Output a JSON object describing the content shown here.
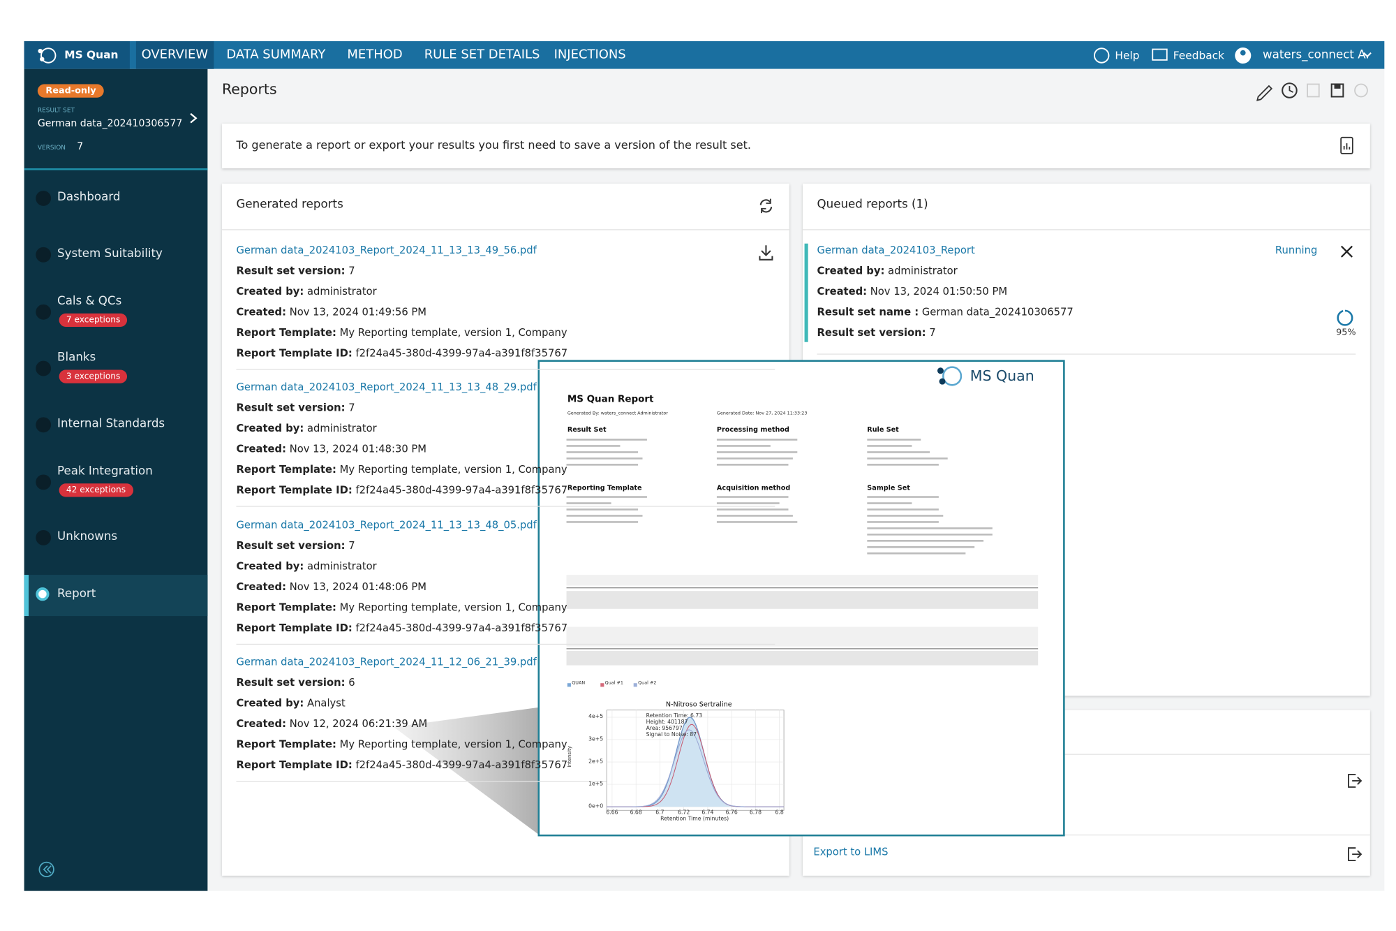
{
  "nav": {
    "product": "MS Quan",
    "tabs": [
      "OVERVIEW",
      "DATA SUMMARY",
      "METHOD",
      "RULE SET DETAILS",
      "INJECTIONS"
    ],
    "help": "Help",
    "feedback": "Feedback",
    "user": "waters_connect A."
  },
  "sidebar": {
    "badge": "Read-only",
    "result_set_label": "RESULT SET",
    "result_set": "German data_202410306577",
    "version_label": "VERSION",
    "version": 7,
    "items": [
      {
        "label": "Dashboard"
      },
      {
        "label": "System Suitability"
      },
      {
        "label": "Cals & QCs",
        "exceptions": "7 exceptions"
      },
      {
        "label": "Blanks",
        "exceptions": "3 exceptions"
      },
      {
        "label": "Internal Standards"
      },
      {
        "label": "Peak Integration",
        "exceptions": "42 exceptions"
      },
      {
        "label": "Unknowns"
      },
      {
        "label": "Report"
      }
    ]
  },
  "page": {
    "title": "Reports",
    "notice": "To generate a report or export your results you first need to save a version of the result set."
  },
  "generated": {
    "title": "Generated reports",
    "reports": [
      {
        "file": "German data_2024103_Report_2024_11_13_13_49_56.pdf",
        "fields": [
          {
            "label": "Result set version:",
            "value": "7"
          },
          {
            "label": "Created by:",
            "value": "administrator"
          },
          {
            "label": "Created:",
            "value": "Nov 13, 2024 01:49:56 PM"
          },
          {
            "label": "Report Template:",
            "value": "My Reporting template, version 1, Company"
          },
          {
            "label": "Report Template ID:",
            "value": "f2f24a45-380d-4399-97a4-a391f8f35767"
          }
        ]
      },
      {
        "file": "German data_2024103_Report_2024_11_13_13_48_29.pdf",
        "fields": [
          {
            "label": "Result set version:",
            "value": "7"
          },
          {
            "label": "Created by:",
            "value": "administrator"
          },
          {
            "label": "Created:",
            "value": "Nov 13, 2024 01:48:30 PM"
          },
          {
            "label": "Report Template:",
            "value": "My Reporting template, version 1, Company"
          },
          {
            "label": "Report Template ID:",
            "value": "f2f24a45-380d-4399-97a4-a391f8f35767"
          }
        ]
      },
      {
        "file": "German data_2024103_Report_2024_11_13_13_48_05.pdf",
        "fields": [
          {
            "label": "Result set version:",
            "value": "7"
          },
          {
            "label": "Created by:",
            "value": "administrator"
          },
          {
            "label": "Created:",
            "value": "Nov 13, 2024 01:48:06 PM"
          },
          {
            "label": "Report Template:",
            "value": "My Reporting template, version 1, Company"
          },
          {
            "label": "Report Template ID:",
            "value": "f2f24a45-380d-4399-97a4-a391f8f35767"
          }
        ]
      },
      {
        "file": "German data_2024103_Report_2024_11_12_06_21_39.pdf",
        "fields": [
          {
            "label": "Result set version:",
            "value": "6"
          },
          {
            "label": "Created by:",
            "value": "Analyst"
          },
          {
            "label": "Created:",
            "value": "Nov 12, 2024 06:21:39 AM"
          },
          {
            "label": "Report Template:",
            "value": "My Reporting template, version 1, Company"
          },
          {
            "label": "Report Template ID:",
            "value": "f2f24a45-380d-4399-97a4-a391f8f35767"
          }
        ]
      }
    ]
  },
  "queued": {
    "title": "Queued reports (1)",
    "report": {
      "name": "German data_2024103_Report",
      "status": "Running",
      "progress": "95%",
      "fields": [
        {
          "label": "Created by:",
          "value": "administrator"
        },
        {
          "label": "Created:",
          "value": "Nov 13, 2024 01:50:50 PM"
        },
        {
          "label": "Result set name :",
          "value": "German data_202410306577"
        },
        {
          "label": "Result set version:",
          "value": "7"
        }
      ]
    }
  },
  "export": {
    "label": "Export to LIMS"
  },
  "preview": {
    "logo": "MS Quan",
    "title": "MS Quan Report",
    "generated_by": "Generated By: waters_connect Administrator",
    "generated_date": "Generated Date: Nov 27, 2024 11:33:23",
    "sections": [
      "Result Set",
      "Processing method",
      "Rule Set",
      "Reporting Template",
      "Acquisition method",
      "Sample Set"
    ],
    "legend": [
      "QUAN",
      "Qual #1",
      "Qual #2"
    ],
    "chart_title": "N-Nitroso Sertraline",
    "y_label": "Intensity",
    "x_label": "Retention Time (minutes)",
    "yticks": [
      "4e+5",
      "3e+5",
      "2e+5",
      "1e+5",
      "0e+0"
    ],
    "xticks": [
      "6.66",
      "6.68",
      "6.7",
      "6.72",
      "6.74",
      "6.76",
      "6.78",
      "6.8"
    ],
    "annotation": [
      "Retention Time: 6.73",
      "Height: 401187",
      "Area: 956797",
      "Signal to Noise: 87"
    ]
  }
}
